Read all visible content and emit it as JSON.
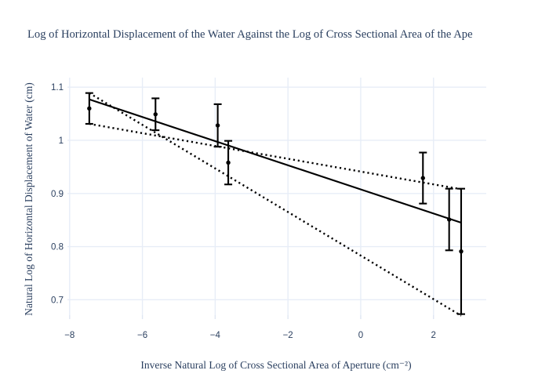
{
  "chart_data": {
    "type": "scatter",
    "title": "Log of Horizontal Displacement of the Water Against the Log of Cross Sectional Area of the Ape",
    "xlabel": "Inverse Natural Log of Cross Sectional Area of Aperture (cm⁻²)",
    "ylabel": "Natural Log of Horizontal Displacement of Water (cm)",
    "xlim": [
      -8.06,
      3.45
    ],
    "ylim": [
      0.671,
      1.118
    ],
    "grid": true,
    "legend": "none",
    "x_ticks": [
      {
        "value": -8,
        "label": "−8"
      },
      {
        "value": -6,
        "label": "−6"
      },
      {
        "value": -4,
        "label": "−4"
      },
      {
        "value": -2,
        "label": "−2"
      },
      {
        "value": 0,
        "label": "0"
      },
      {
        "value": 2,
        "label": "2"
      }
    ],
    "y_ticks": [
      {
        "value": 0.7,
        "label": "0.7"
      },
      {
        "value": 0.8,
        "label": "0.8"
      },
      {
        "value": 0.9,
        "label": "0.9"
      },
      {
        "value": 1.0,
        "label": "1"
      },
      {
        "value": 1.1,
        "label": "1.1"
      }
    ],
    "series": [
      {
        "name": "measured points with error bars",
        "marker": "filled-circle",
        "color": "#000000",
        "points": [
          {
            "x": -7.46,
            "y": 1.06,
            "yerr": 0.029
          },
          {
            "x": -5.64,
            "y": 1.049,
            "yerr": 0.03
          },
          {
            "x": -3.93,
            "y": 1.028,
            "yerr": 0.04
          },
          {
            "x": -3.64,
            "y": 0.958,
            "yerr": 0.041
          },
          {
            "x": 1.71,
            "y": 0.929,
            "yerr": 0.048
          },
          {
            "x": 2.43,
            "y": 0.851,
            "yerr": 0.058
          },
          {
            "x": 2.76,
            "y": 0.791,
            "yerr": 0.118
          }
        ]
      }
    ],
    "lines": [
      {
        "name": "best-fit-line",
        "style": "solid",
        "x": [
          -7.46,
          2.76
        ],
        "y": [
          1.077,
          0.845
        ]
      },
      {
        "name": "max-slope-line",
        "style": "dotted",
        "x": [
          -7.46,
          2.76
        ],
        "y": [
          1.089,
          0.67
        ]
      },
      {
        "name": "min-slope-line",
        "style": "dotted",
        "x": [
          -7.46,
          2.76
        ],
        "y": [
          1.031,
          0.908
        ]
      }
    ],
    "colors": {
      "data": "#000000",
      "grid": "#e7edf7",
      "tick_mark": "#dfe6f2",
      "text": "#2a3f5f",
      "background": "#ffffff"
    }
  }
}
